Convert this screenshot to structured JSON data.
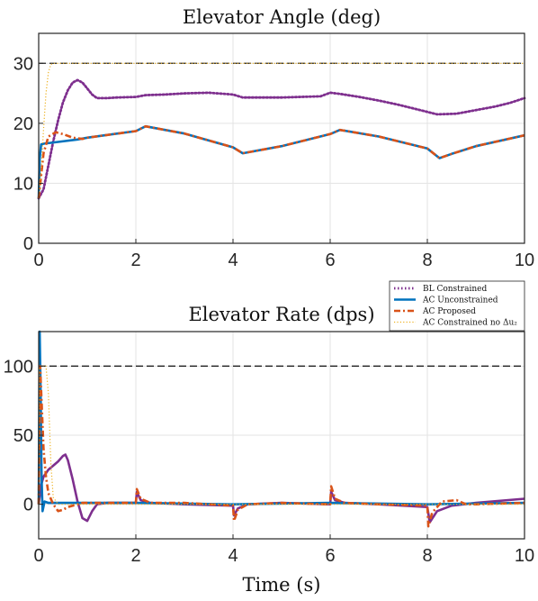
{
  "chart_data": [
    {
      "type": "line",
      "title": "Elevator Angle (deg)",
      "xlabel": "",
      "ylabel": "",
      "xlim": [
        0,
        10
      ],
      "ylim": [
        0,
        35
      ],
      "xticks": [
        0,
        2,
        4,
        6,
        8,
        10
      ],
      "yticks": [
        0,
        10,
        20,
        30
      ],
      "grid": true,
      "reference_lines": [
        {
          "y": 30,
          "style": "dashed",
          "color": "#222222"
        }
      ],
      "series": [
        {
          "name": "BL Constrained",
          "color": "#7E2F8E",
          "style": "dotted",
          "x": [
            0,
            0.1,
            0.2,
            0.3,
            0.4,
            0.5,
            0.6,
            0.7,
            0.8,
            0.9,
            1.0,
            1.1,
            1.2,
            1.4,
            1.6,
            2.0,
            2.2,
            2.6,
            3.0,
            3.5,
            4.0,
            4.2,
            5.0,
            5.8,
            6.0,
            6.2,
            6.6,
            7.0,
            7.4,
            7.8,
            8.2,
            8.6,
            9.0,
            9.4,
            9.7,
            10.0
          ],
          "y": [
            7.5,
            9,
            13,
            17,
            20.5,
            23.5,
            25.5,
            26.8,
            27.2,
            26.8,
            25.8,
            24.8,
            24.2,
            24.2,
            24.3,
            24.4,
            24.7,
            24.8,
            25.0,
            25.1,
            24.8,
            24.3,
            24.3,
            24.5,
            25.1,
            24.9,
            24.4,
            23.8,
            23.1,
            22.3,
            21.5,
            21.6,
            22.2,
            22.8,
            23.4,
            24.2
          ]
        },
        {
          "name": "AC Unconstrained",
          "color": "#0072BD",
          "style": "solid",
          "x": [
            0,
            0.02,
            0.05,
            0.1,
            0.4,
            0.8,
            1.0,
            2.0,
            2.2,
            3.0,
            4.0,
            4.2,
            5.0,
            6.0,
            6.2,
            7.0,
            8.0,
            8.25,
            8.5,
            9.0,
            10.0
          ],
          "y": [
            7.5,
            14,
            16.5,
            16.6,
            16.9,
            17.3,
            17.6,
            18.7,
            19.5,
            18.3,
            16.0,
            15.0,
            16.2,
            18.2,
            18.9,
            17.8,
            15.8,
            14.2,
            14.9,
            16.2,
            18.0
          ]
        },
        {
          "name": "AC Proposed",
          "color": "#D95319",
          "style": "dashdot",
          "x": [
            0,
            0.1,
            0.2,
            0.35,
            0.5,
            0.7,
            0.9,
            1.0,
            2.0,
            2.2,
            3.0,
            4.0,
            4.2,
            5.0,
            6.0,
            6.2,
            7.0,
            8.0,
            8.25,
            8.5,
            9.0,
            10.0
          ],
          "y": [
            7.5,
            15,
            17.8,
            18.5,
            18.2,
            17.6,
            17.4,
            17.6,
            18.7,
            19.5,
            18.3,
            16.0,
            15.0,
            16.2,
            18.2,
            18.9,
            17.8,
            15.8,
            14.2,
            14.9,
            16.2,
            18.0
          ]
        },
        {
          "name": "AC Constrained no Δu₂",
          "color": "#EDB120",
          "style": "dotted-thin",
          "x": [
            0,
            0.05,
            0.1,
            0.15,
            0.2,
            0.25,
            0.3,
            1.0,
            10.0
          ],
          "y": [
            7.5,
            12,
            19,
            25,
            28.5,
            29.8,
            30,
            30,
            30
          ]
        }
      ]
    },
    {
      "type": "line",
      "title": "Elevator Rate (dps)",
      "xlabel": "Time (s)",
      "ylabel": "",
      "xlim": [
        0,
        10
      ],
      "ylim": [
        -25,
        125
      ],
      "xticks": [
        0,
        2,
        4,
        6,
        8,
        10
      ],
      "yticks": [
        0,
        50,
        100
      ],
      "grid": true,
      "reference_lines": [
        {
          "y": 100,
          "style": "dashed",
          "color": "#222222"
        }
      ],
      "series": [
        {
          "name": "BL Constrained",
          "color": "#7E2F8E",
          "style": "solid",
          "x": [
            0,
            0.05,
            0.1,
            0.2,
            0.3,
            0.4,
            0.5,
            0.55,
            0.6,
            0.7,
            0.8,
            0.9,
            1.0,
            1.1,
            1.2,
            1.4,
            1.6,
            2.0,
            2.02,
            2.1,
            2.3,
            3.0,
            4.0,
            4.02,
            4.1,
            4.3,
            5.0,
            6.0,
            6.02,
            6.1,
            6.3,
            7.0,
            8.0,
            8.05,
            8.2,
            8.5,
            9.0,
            10.0
          ],
          "y": [
            0,
            14,
            20,
            25,
            28,
            31,
            35,
            36,
            32,
            18,
            2,
            -10,
            -12,
            -5,
            0,
            1,
            1,
            1,
            9,
            3,
            1,
            0,
            -1,
            -8,
            -3,
            0,
            1,
            0,
            9,
            3,
            1,
            0,
            -2,
            -13,
            -5,
            -1,
            1,
            4
          ]
        },
        {
          "name": "AC Unconstrained",
          "color": "#0072BD",
          "style": "solid",
          "x": [
            0,
            0.02,
            0.04,
            0.06,
            0.08,
            0.12,
            0.2,
            0.5,
            1.0,
            2.0,
            4.0,
            6.0,
            8.0,
            10.0
          ],
          "y": [
            0,
            125,
            80,
            20,
            -5,
            2,
            1,
            1,
            1,
            1,
            0,
            1,
            0,
            1
          ]
        },
        {
          "name": "AC Proposed",
          "color": "#D95319",
          "style": "dashdot",
          "x": [
            0,
            0.03,
            0.06,
            0.1,
            0.15,
            0.2,
            0.3,
            0.4,
            0.5,
            0.6,
            0.7,
            0.8,
            0.9,
            1.0,
            2.0,
            2.02,
            2.1,
            2.3,
            3.0,
            4.0,
            4.02,
            4.1,
            4.3,
            5.0,
            6.0,
            6.02,
            6.1,
            6.3,
            7.0,
            8.0,
            8.02,
            8.1,
            8.3,
            8.6,
            8.8,
            9.0,
            10.0
          ],
          "y": [
            0,
            100,
            75,
            40,
            20,
            8,
            0,
            -5,
            -4,
            -2,
            -1,
            0,
            1,
            1,
            1,
            11,
            4,
            1,
            1,
            -1,
            -12,
            -4,
            0,
            1,
            0,
            13,
            4,
            1,
            0,
            -1,
            -16,
            -6,
            2,
            3,
            0,
            0,
            1
          ]
        },
        {
          "name": "AC Constrained no Δu₂",
          "color": "#EDB120",
          "style": "dotted-thin",
          "x": [
            0,
            0.02,
            0.05,
            0.1,
            0.15,
            0.2,
            0.25,
            0.3,
            0.4,
            1.0,
            10.0
          ],
          "y": [
            0,
            100,
            100,
            100,
            100,
            80,
            30,
            5,
            0,
            0,
            0
          ]
        }
      ]
    }
  ],
  "legend": {
    "placement": "top-right of lower panel",
    "items": [
      {
        "label": "BL Constrained",
        "color": "#7E2F8E",
        "style": "dotted"
      },
      {
        "label": "AC Unconstrained",
        "color": "#0072BD",
        "style": "solid"
      },
      {
        "label": "AC Proposed",
        "color": "#D95319",
        "style": "dashdot"
      },
      {
        "label": "AC Constrained no Δu₂",
        "color": "#EDB120",
        "style": "dotted-thin"
      }
    ]
  }
}
